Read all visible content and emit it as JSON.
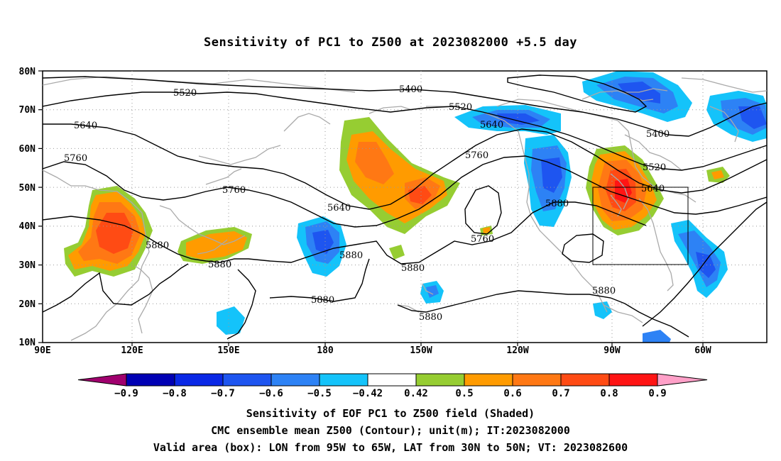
{
  "title": "Sensitivity of PC1 to Z500 at 2023082000 +5.5 day",
  "map": {
    "lat_labels": [
      "80N",
      "70N",
      "60N",
      "50N",
      "40N",
      "30N",
      "20N",
      "10N"
    ],
    "lon_labels": [
      "90E",
      "120E",
      "150E",
      "180",
      "150W",
      "120W",
      "90W",
      "60W"
    ],
    "contour_labels": [
      "5400",
      "5520",
      "5520",
      "5520",
      "5640",
      "5640",
      "5640",
      "5640",
      "5760",
      "5760",
      "5760",
      "5760",
      "5880",
      "5880",
      "5880",
      "5880",
      "5880",
      "5880",
      "5880",
      "5400"
    ],
    "valid_box": {
      "lon_west": "95W",
      "lon_east": "65W",
      "lat_south": "30N",
      "lat_north": "50N"
    },
    "shading_colors": {
      "neg_09": "#a0006e",
      "neg_08": "#0000b4",
      "neg_07": "#0a28e6",
      "neg_06": "#1e55f0",
      "neg_05": "#2d82f5",
      "neg_042": "#14c3fa",
      "neutral": "#ffffff",
      "pos_05": "#96cd32",
      "pos_06": "#ff9b00",
      "pos_07": "#ff7814",
      "pos_08": "#ff4b14",
      "pos_09": "#ff1414",
      "pos_max": "#ffa0c8"
    }
  },
  "colorbar": {
    "labels": [
      "−0.9",
      "−0.8",
      "−0.7",
      "−0.6",
      "−0.5",
      "−0.42",
      "0.42",
      "0.5",
      "0.6",
      "0.7",
      "0.8",
      "0.9"
    ],
    "colors": [
      "#a0006e",
      "#0000b4",
      "#0a28e6",
      "#1e55f0",
      "#2d82f5",
      "#14c3fa",
      "#ffffff",
      "#96cd32",
      "#ff9b00",
      "#ff7814",
      "#ff4b14",
      "#ff1414",
      "#ffa0c8"
    ]
  },
  "captions": [
    "Sensitivity of EOF PC1 to Z500 field (Shaded)",
    "CMC ensemble mean Z500 (Contour); unit(m); IT:2023082000",
    "Valid area (box): LON from 95W to 65W, LAT from 30N to 50N; VT: 2023082600"
  ]
}
